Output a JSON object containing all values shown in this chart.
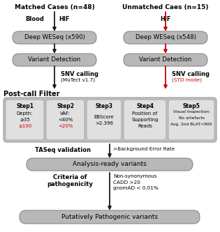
{
  "bg_color": "#ffffff",
  "box_fill": "#b8b8b8",
  "box_edge": "#888888",
  "black_arrow": "#1a1a1a",
  "red_arrow": "#cc0000",
  "red_text": "#cc0000",
  "left_title": "Matched Cases (n=48)",
  "right_title": "Unmatched Caes (n=15)",
  "left_box1": "Deep WESeq (x590)",
  "right_box1": "Deep WESeq (x548)",
  "left_box2": "Variant Detection",
  "right_box2": "Variant Detection",
  "left_label1": "Blood",
  "left_label2": "HIF",
  "right_label1": "HIF",
  "left_snv": "SNV calling",
  "left_snv_sub": "(MuTect v1.7)",
  "right_snv": "SNV calling",
  "right_snv_sub": "(STD mode)",
  "postcall": "Post-call Filter",
  "step_labels": [
    "Step1",
    "Step2",
    "Step3",
    "Step4",
    "Step5"
  ],
  "taseq": "TASeq validation",
  "bg_error": ">Background Error Rate",
  "analysis": "Analysis-ready variants",
  "criteria_left": "Criteria of\npathogenicity",
  "criteria_right": "Non-synonymous\nCADD >20\ngnomAD < 0.01%",
  "putative": "Putatively Pathogenic variants",
  "step_outer_fill": "#c0c0c0",
  "step_outer_edge": "#999999",
  "step_inner_fill": "#e0e0e0",
  "step_inner_edge": "#aaaaaa"
}
